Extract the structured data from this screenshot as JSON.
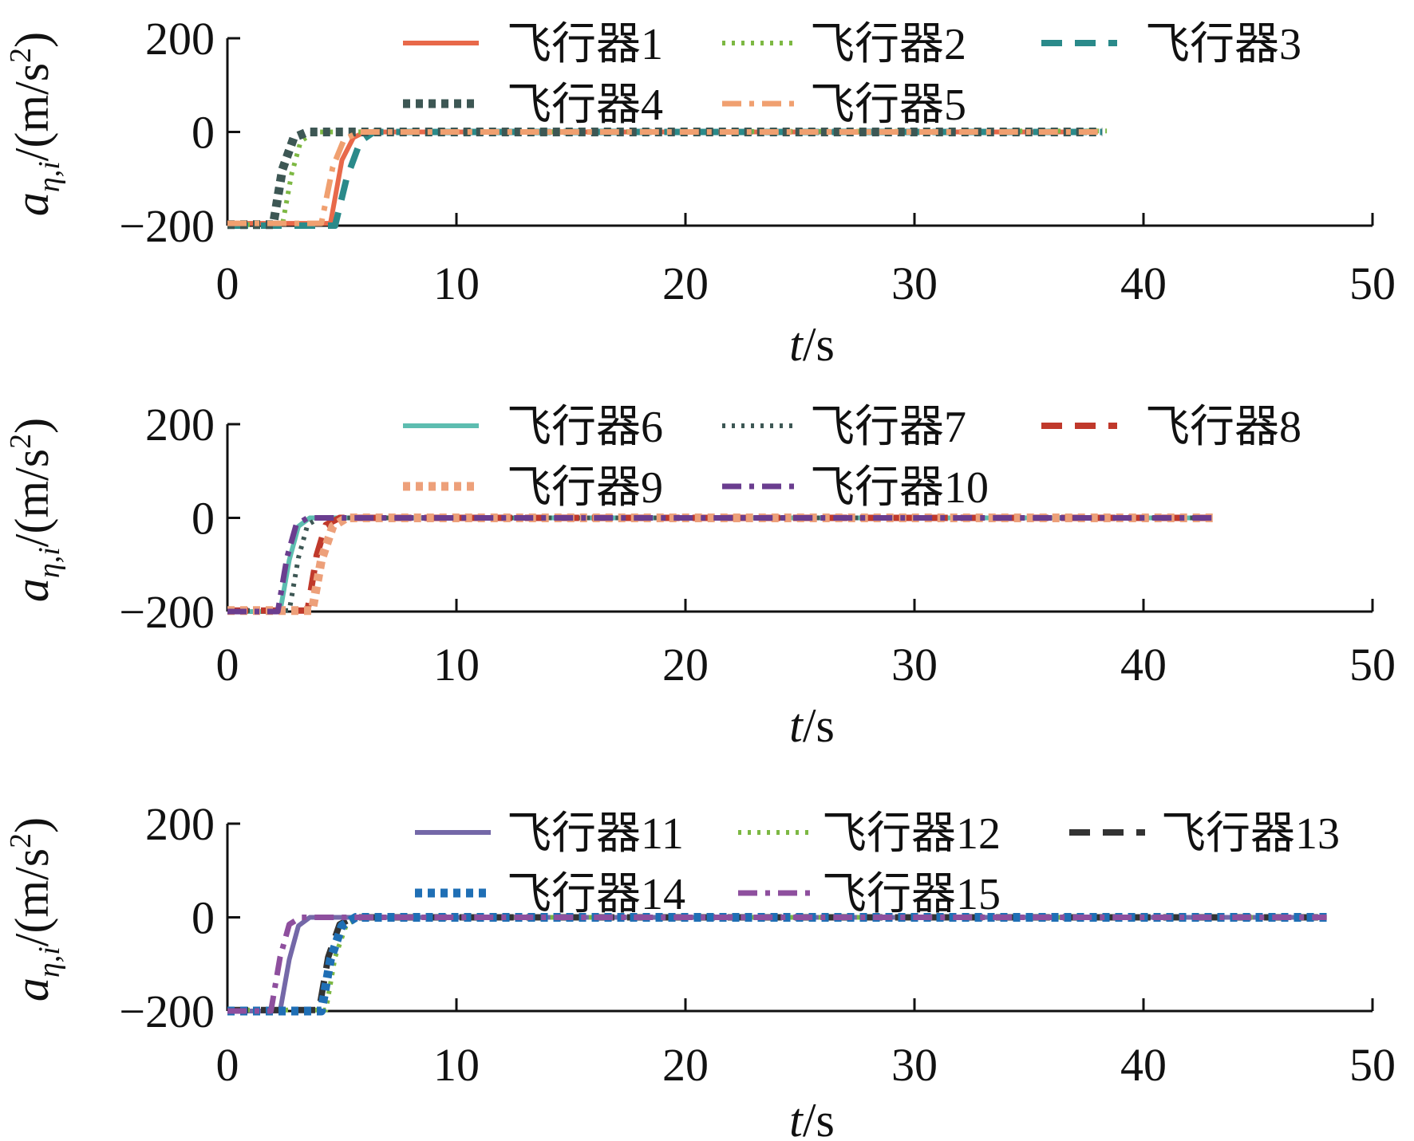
{
  "chart_data": [
    {
      "type": "line",
      "panel": "top",
      "xlabel_var": "t",
      "xlabel_unit": "/s",
      "ylabel_var": "a",
      "ylabel_sub": "η,i",
      "ylabel_unit": "/(m/s",
      "ylabel_sup": "2",
      "ylabel_close": ")",
      "xlim": [
        0,
        50
      ],
      "ylim": [
        -200,
        200
      ],
      "xticks": [
        0,
        10,
        20,
        30,
        40,
        50
      ],
      "yticks": [
        -200,
        0,
        200
      ],
      "xtick_labels": [
        "0",
        "10",
        "20",
        "30",
        "40",
        "50"
      ],
      "ytick_labels": [
        "−200",
        "0",
        "200"
      ],
      "legend": "top-right",
      "grid": false,
      "series": [
        {
          "name": "飞行器1",
          "color": "#e8694a",
          "dash": "solid",
          "x": [
            0,
            4.5,
            5.0,
            5.5,
            6.0,
            38.0
          ],
          "y": [
            -195,
            -195,
            -60,
            -12,
            0,
            0
          ]
        },
        {
          "name": "飞行器2",
          "color": "#7db843",
          "dash": "dotted",
          "x": [
            0,
            2.4,
            2.8,
            3.2,
            3.8,
            38.4
          ],
          "y": [
            -198,
            -198,
            -90,
            -20,
            0,
            2
          ]
        },
        {
          "name": "飞行器3",
          "color": "#2a8a8a",
          "dash": "dashed",
          "x": [
            0,
            4.7,
            5.2,
            5.8,
            6.4,
            38.2
          ],
          "y": [
            -200,
            -200,
            -100,
            -20,
            0,
            0
          ]
        },
        {
          "name": "飞行器4",
          "color": "#3d5754",
          "dash": "dense-dotted",
          "x": [
            0,
            2.0,
            2.4,
            2.9,
            3.5,
            38.2
          ],
          "y": [
            -198,
            -198,
            -80,
            -12,
            0,
            0
          ]
        },
        {
          "name": "飞行器5",
          "color": "#f0a070",
          "dash": "dashdot",
          "x": [
            0,
            4.1,
            4.6,
            5.1,
            5.8,
            38.2
          ],
          "y": [
            -195,
            -195,
            -75,
            -15,
            0,
            0
          ]
        }
      ]
    },
    {
      "type": "line",
      "panel": "middle",
      "xlabel_var": "t",
      "xlabel_unit": "/s",
      "ylabel_var": "a",
      "ylabel_sub": "η,i",
      "ylabel_unit": "/(m/s",
      "ylabel_sup": "2",
      "ylabel_close": ")",
      "xlim": [
        0,
        50
      ],
      "ylim": [
        -200,
        200
      ],
      "xticks": [
        0,
        10,
        20,
        30,
        40,
        50
      ],
      "yticks": [
        -200,
        0,
        200
      ],
      "xtick_labels": [
        "0",
        "10",
        "20",
        "30",
        "40",
        "50"
      ],
      "ytick_labels": [
        "−200",
        "0",
        "200"
      ],
      "legend": "top-right",
      "grid": false,
      "series": [
        {
          "name": "飞行器6",
          "color": "#5dbdb0",
          "dash": "solid",
          "x": [
            0,
            2.3,
            2.7,
            3.1,
            3.6,
            43.0
          ],
          "y": [
            -200,
            -200,
            -90,
            -18,
            0,
            0
          ]
        },
        {
          "name": "飞行器7",
          "color": "#3d5754",
          "dash": "dotted",
          "x": [
            0,
            2.7,
            3.1,
            3.5,
            4.0,
            43.0
          ],
          "y": [
            -198,
            -198,
            -85,
            -15,
            0,
            0
          ]
        },
        {
          "name": "飞行器8",
          "color": "#c0392b",
          "dash": "dashed",
          "x": [
            0,
            3.5,
            3.9,
            4.3,
            4.9,
            43.0
          ],
          "y": [
            -198,
            -198,
            -80,
            -15,
            0,
            0
          ]
        },
        {
          "name": "飞行器9",
          "color": "#eda07a",
          "dash": "dense-dotted",
          "x": [
            0,
            3.7,
            4.1,
            4.6,
            5.2,
            43.2
          ],
          "y": [
            -198,
            -198,
            -90,
            -18,
            0,
            0
          ]
        },
        {
          "name": "飞行器10",
          "color": "#6a3d8f",
          "dash": "dashdot",
          "x": [
            0,
            2.2,
            2.6,
            3.0,
            3.5,
            43.0
          ],
          "y": [
            -200,
            -200,
            -85,
            -15,
            0,
            0
          ]
        }
      ]
    },
    {
      "type": "line",
      "panel": "bottom",
      "xlabel_var": "t",
      "xlabel_unit": "/s",
      "ylabel_var": "a",
      "ylabel_sub": "η,i",
      "ylabel_unit": "/(m/s",
      "ylabel_sup": "2",
      "ylabel_close": ")",
      "xlim": [
        0,
        50
      ],
      "ylim": [
        -200,
        200
      ],
      "xticks": [
        0,
        10,
        20,
        30,
        40,
        50
      ],
      "yticks": [
        -200,
        0,
        200
      ],
      "xtick_labels": [
        "0",
        "10",
        "20",
        "30",
        "40",
        "50"
      ],
      "ytick_labels": [
        "−200",
        "0",
        "200"
      ],
      "legend": "top-right",
      "grid": false,
      "series": [
        {
          "name": "飞行器11",
          "color": "#7468a8",
          "dash": "solid",
          "x": [
            0,
            2.3,
            2.7,
            3.1,
            3.6,
            48.0
          ],
          "y": [
            -200,
            -200,
            -90,
            -18,
            0,
            0
          ]
        },
        {
          "name": "飞行器12",
          "color": "#7db843",
          "dash": "dotted",
          "x": [
            0,
            4.3,
            4.7,
            5.2,
            5.8,
            48.0
          ],
          "y": [
            -198,
            -198,
            -85,
            -15,
            0,
            0
          ]
        },
        {
          "name": "飞行器13",
          "color": "#333333",
          "dash": "dashed",
          "x": [
            0,
            4.0,
            4.4,
            4.9,
            5.5,
            48.0
          ],
          "y": [
            -198,
            -198,
            -85,
            -15,
            0,
            0
          ]
        },
        {
          "name": "飞行器14",
          "color": "#1f6fb5",
          "dash": "dense-dotted",
          "x": [
            0,
            4.1,
            4.5,
            5.0,
            5.6,
            48.0
          ],
          "y": [
            -200,
            -200,
            -90,
            -18,
            0,
            0
          ]
        },
        {
          "name": "飞行器15",
          "color": "#8e4f9e",
          "dash": "dashdot",
          "x": [
            0,
            1.9,
            2.3,
            2.7,
            3.2,
            48.0
          ],
          "y": [
            -200,
            -200,
            -85,
            -15,
            0,
            0
          ]
        }
      ]
    }
  ]
}
